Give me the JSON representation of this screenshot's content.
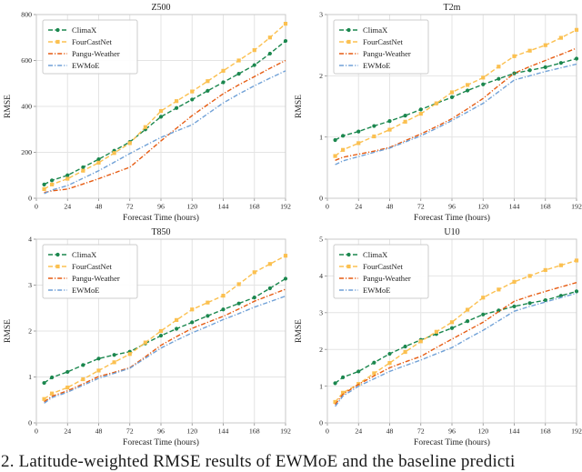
{
  "figure": {
    "caption_fragment": "2. Latitude-weighted RMSE results of EWMoE and the baseline predicti"
  },
  "styles": {
    "background": "#ffffff",
    "grid_color": "#e4e4e4",
    "spine_color": "#c9c9c9",
    "tick_mark_color": "#8a8a8a",
    "text_color": "#1f1f1f",
    "legend_border": "#cccccc"
  },
  "series_styles": {
    "ClimaX": {
      "color": "#1b874e",
      "dash": "dashed",
      "marker": "circle"
    },
    "FourCastNet": {
      "color": "#fbc050",
      "dash": "dashed",
      "marker": "square"
    },
    "Pangu-Weather": {
      "color": "#e65c13",
      "dash": "dashdot",
      "marker": null
    },
    "EWMoE": {
      "color": "#70a1d7",
      "dash": "dashdot",
      "marker": null
    }
  },
  "chart_data": [
    {
      "type": "line",
      "title": "Z500",
      "xlabel": "Forecast Time (hours)",
      "ylabel": "RMSE",
      "grid": true,
      "legend_position": "upper left",
      "xlim": [
        0,
        192
      ],
      "ylim": [
        0,
        800
      ],
      "xticks": [
        0,
        24,
        48,
        72,
        96,
        120,
        144,
        168,
        192
      ],
      "yticks": [
        0,
        200,
        400,
        600,
        800
      ],
      "x": [
        6,
        12,
        24,
        36,
        48,
        60,
        72,
        84,
        96,
        108,
        120,
        132,
        144,
        156,
        168,
        180,
        192
      ],
      "series": [
        {
          "name": "ClimaX",
          "values": [
            60,
            78,
            100,
            135,
            170,
            207,
            245,
            300,
            355,
            393,
            430,
            468,
            505,
            542,
            580,
            630,
            685
          ]
        },
        {
          "name": "FourCastNet",
          "values": [
            40,
            60,
            85,
            120,
            155,
            197,
            240,
            310,
            380,
            423,
            465,
            510,
            555,
            600,
            645,
            700,
            760
          ]
        },
        {
          "name": "Pangu-Weather",
          "values": [
            25,
            32,
            40,
            62,
            85,
            110,
            135,
            192,
            250,
            305,
            360,
            408,
            455,
            494,
            530,
            566,
            600
          ]
        },
        {
          "name": "EWMoE",
          "values": [
            20,
            36,
            55,
            87,
            120,
            157,
            195,
            230,
            265,
            293,
            320,
            368,
            415,
            454,
            490,
            523,
            555
          ]
        }
      ]
    },
    {
      "type": "line",
      "title": "T2m",
      "xlabel": "Forecast Time (hours)",
      "ylabel": "RMSE",
      "grid": true,
      "legend_position": "upper left",
      "xlim": [
        0,
        192
      ],
      "ylim": [
        0,
        3
      ],
      "xticks": [
        0,
        24,
        48,
        72,
        96,
        120,
        144,
        168,
        192
      ],
      "yticks": [
        0,
        1,
        2,
        3
      ],
      "x": [
        6,
        12,
        24,
        36,
        48,
        60,
        72,
        84,
        96,
        108,
        120,
        132,
        144,
        156,
        168,
        180,
        192
      ],
      "series": [
        {
          "name": "ClimaX",
          "values": [
            0.95,
            1.02,
            1.09,
            1.18,
            1.26,
            1.35,
            1.45,
            1.55,
            1.65,
            1.76,
            1.86,
            1.95,
            2.04,
            2.09,
            2.14,
            2.21,
            2.28
          ]
        },
        {
          "name": "FourCastNet",
          "values": [
            0.69,
            0.79,
            0.9,
            1.01,
            1.12,
            1.25,
            1.38,
            1.55,
            1.73,
            1.85,
            1.97,
            2.15,
            2.32,
            2.41,
            2.5,
            2.62,
            2.75
          ]
        },
        {
          "name": "Pangu-Weather",
          "values": [
            0.62,
            0.67,
            0.72,
            0.77,
            0.83,
            0.94,
            1.05,
            1.17,
            1.3,
            1.46,
            1.63,
            1.84,
            2.04,
            2.15,
            2.25,
            2.35,
            2.45
          ]
        },
        {
          "name": "EWMoE",
          "values": [
            0.55,
            0.61,
            0.68,
            0.75,
            0.82,
            0.92,
            1.02,
            1.14,
            1.27,
            1.41,
            1.55,
            1.74,
            1.93,
            2.0,
            2.07,
            2.13,
            2.19
          ]
        }
      ]
    },
    {
      "type": "line",
      "title": "T850",
      "xlabel": "Forecast Time (hours)",
      "ylabel": "RMSE",
      "grid": true,
      "legend_position": "upper left",
      "xlim": [
        0,
        192
      ],
      "ylim": [
        0,
        4
      ],
      "xticks": [
        0,
        24,
        48,
        72,
        96,
        120,
        144,
        168,
        192
      ],
      "yticks": [
        0,
        1,
        2,
        3,
        4
      ],
      "x": [
        6,
        12,
        24,
        36,
        48,
        60,
        72,
        84,
        96,
        108,
        120,
        132,
        144,
        156,
        168,
        180,
        192
      ],
      "series": [
        {
          "name": "ClimaX",
          "values": [
            0.87,
            0.99,
            1.11,
            1.26,
            1.4,
            1.48,
            1.55,
            1.73,
            1.9,
            2.05,
            2.19,
            2.33,
            2.47,
            2.6,
            2.73,
            2.93,
            3.14
          ]
        },
        {
          "name": "FourCastNet",
          "values": [
            0.52,
            0.64,
            0.77,
            0.95,
            1.14,
            1.32,
            1.5,
            1.75,
            2.0,
            2.24,
            2.47,
            2.62,
            2.77,
            3.02,
            3.28,
            3.46,
            3.64
          ]
        },
        {
          "name": "Pangu-Weather",
          "values": [
            0.46,
            0.58,
            0.7,
            0.85,
            1.01,
            1.1,
            1.2,
            1.44,
            1.69,
            1.88,
            2.06,
            2.19,
            2.32,
            2.48,
            2.65,
            2.78,
            2.91
          ]
        },
        {
          "name": "EWMoE",
          "values": [
            0.43,
            0.55,
            0.67,
            0.82,
            0.97,
            1.08,
            1.19,
            1.41,
            1.63,
            1.8,
            1.96,
            2.1,
            2.25,
            2.38,
            2.52,
            2.64,
            2.76
          ]
        }
      ]
    },
    {
      "type": "line",
      "title": "U10",
      "xlabel": "Forecast Time (hours)",
      "ylabel": "RMSE",
      "grid": true,
      "legend_position": "upper left",
      "xlim": [
        0,
        192
      ],
      "ylim": [
        0,
        5
      ],
      "xticks": [
        0,
        24,
        48,
        72,
        96,
        120,
        144,
        168,
        192
      ],
      "yticks": [
        0,
        1,
        2,
        3,
        4,
        5
      ],
      "x": [
        6,
        12,
        24,
        36,
        48,
        60,
        72,
        84,
        96,
        108,
        120,
        132,
        144,
        156,
        168,
        180,
        192
      ],
      "series": [
        {
          "name": "ClimaX",
          "values": [
            1.08,
            1.24,
            1.4,
            1.64,
            1.88,
            2.08,
            2.26,
            2.42,
            2.58,
            2.77,
            2.95,
            3.06,
            3.17,
            3.26,
            3.34,
            3.46,
            3.58
          ]
        },
        {
          "name": "FourCastNet",
          "values": [
            0.57,
            0.82,
            1.06,
            1.35,
            1.63,
            1.93,
            2.22,
            2.48,
            2.74,
            3.08,
            3.41,
            3.63,
            3.84,
            4.0,
            4.16,
            4.29,
            4.42
          ]
        },
        {
          "name": "Pangu-Weather",
          "values": [
            0.5,
            0.78,
            1.05,
            1.28,
            1.5,
            1.66,
            1.81,
            2.05,
            2.28,
            2.51,
            2.74,
            3.03,
            3.31,
            3.45,
            3.58,
            3.7,
            3.82
          ]
        },
        {
          "name": "EWMoE",
          "values": [
            0.45,
            0.73,
            1.0,
            1.2,
            1.4,
            1.56,
            1.71,
            1.88,
            2.05,
            2.29,
            2.52,
            2.78,
            3.04,
            3.17,
            3.29,
            3.41,
            3.53
          ]
        }
      ]
    }
  ]
}
